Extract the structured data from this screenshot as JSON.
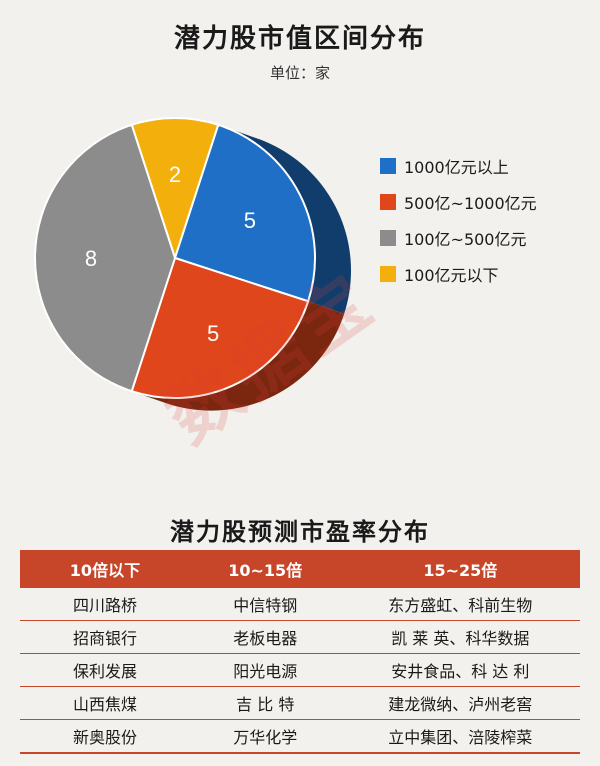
{
  "chart_data": {
    "type": "pie",
    "title": "潜力股市值区间分布",
    "subtitle": "单位：家",
    "slices": [
      {
        "label": "1000亿元以上",
        "value": 5,
        "color": "#1e6fc5"
      },
      {
        "label": "500亿~1000亿元",
        "value": 5,
        "color": "#e0461b"
      },
      {
        "label": "100亿~500亿元",
        "value": 8,
        "color": "#8c8c8c"
      },
      {
        "label": "100亿元以下",
        "value": 2,
        "color": "#f3b00c"
      }
    ],
    "legend_position": "right"
  },
  "watermark": "数据宝",
  "pe_section": {
    "title": "潜力股预测市盈率分布",
    "headers": [
      "10倍以下",
      "10~15倍",
      "15~25倍"
    ],
    "rows": [
      [
        "四川路桥",
        "中信特钢",
        "东方盛虹、科前生物"
      ],
      [
        "招商银行",
        "老板电器",
        "凯 莱 英、科华数据"
      ],
      [
        "保利发展",
        "阳光电源",
        "安井食品、科 达 利"
      ],
      [
        "山西焦煤",
        "吉 比 特",
        "建龙微纳、泸州老窖"
      ],
      [
        "新奥股份",
        "万华化学",
        "立中集团、涪陵榨菜"
      ]
    ]
  }
}
